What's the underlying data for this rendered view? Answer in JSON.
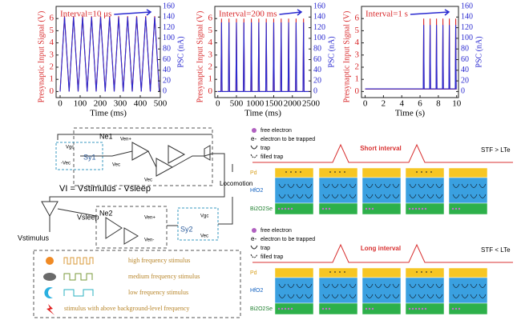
{
  "chart_data": [
    {
      "type": "line",
      "annotation": "Interval=10 μs",
      "xlabel": "Time (ms)",
      "ylabel": "Presynaptic Input Signal (V)",
      "y2label": "PSC (nA)",
      "x": [
        0,
        22,
        45,
        67,
        90,
        112,
        135,
        157,
        180,
        202,
        225,
        247,
        270,
        292,
        315,
        337,
        360,
        382,
        405,
        427,
        450,
        472,
        495
      ],
      "series": [
        {
          "color": "#d8282a",
          "axis": "y",
          "values": [
            0,
            6.2,
            0,
            6.2,
            0,
            6.2,
            0,
            6.2,
            0,
            6.2,
            0,
            6.2,
            0,
            6.2,
            0,
            6.2,
            0,
            6.2,
            0,
            6.2,
            0,
            6.2,
            0
          ]
        },
        {
          "color": "#2a2ad0",
          "axis": "y2",
          "values": [
            0,
            140,
            0,
            140,
            0,
            140,
            0,
            140,
            0,
            140,
            0,
            140,
            0,
            140,
            0,
            140,
            0,
            140,
            0,
            140,
            0,
            140,
            0
          ]
        }
      ],
      "xlim": [
        -20,
        500
      ],
      "xticks": [
        0,
        100,
        200,
        300,
        400,
        500
      ],
      "ylim": [
        -0.5,
        7
      ],
      "yticks": [
        0,
        1,
        2,
        3,
        4,
        5,
        6
      ],
      "y2lim": [
        -11.4,
        160
      ],
      "y2ticks": [
        0,
        20,
        40,
        60,
        80,
        100,
        120,
        140,
        160
      ]
    },
    {
      "type": "line",
      "annotation": "Interval=200 ms",
      "xlabel": "Time (ms)",
      "ylabel": "Presynaptic Input Signal (V)",
      "y2label": "PSC (nA)",
      "x": [
        0,
        85,
        100,
        115,
        285,
        300,
        315,
        485,
        500,
        515,
        685,
        700,
        715,
        885,
        900,
        915,
        1085,
        1100,
        1115,
        1285,
        1300,
        1315,
        1485,
        1500,
        1515,
        1685,
        1700,
        1715,
        1885,
        1900,
        1915,
        2085,
        2100,
        2115,
        2285,
        2300,
        2315,
        2500
      ],
      "series": [
        {
          "color": "#d8282a",
          "axis": "y",
          "values": [
            0,
            0,
            6,
            0,
            0,
            6,
            0,
            0,
            6,
            0,
            0,
            6,
            0,
            0,
            6,
            0,
            0,
            6,
            0,
            0,
            6,
            0,
            0,
            6,
            0,
            0,
            6,
            0,
            0,
            6,
            0,
            0,
            6,
            0,
            0,
            6,
            0,
            0
          ]
        },
        {
          "color": "#2a2ad0",
          "axis": "y2",
          "values": [
            0,
            0,
            130,
            0,
            0,
            130,
            0,
            0,
            130,
            0,
            0,
            130,
            0,
            0,
            130,
            0,
            0,
            130,
            0,
            0,
            130,
            0,
            0,
            130,
            0,
            0,
            130,
            0,
            0,
            130,
            0,
            0,
            130,
            0,
            0,
            130,
            0,
            0
          ]
        }
      ],
      "xlim": [
        -80,
        2500
      ],
      "xticks": [
        0,
        500,
        1000,
        1500,
        2000,
        2500
      ],
      "ylim": [
        -0.5,
        7
      ],
      "yticks": [
        0,
        1,
        2,
        3,
        4,
        5,
        6
      ],
      "y2lim": [
        -11.4,
        160
      ],
      "y2ticks": [
        0,
        20,
        40,
        60,
        80,
        100,
        120,
        140,
        160
      ]
    },
    {
      "type": "line",
      "annotation": "Interval=1 s",
      "xlabel": "Time (s)",
      "ylabel": "Presynaptic Input Signal (V)",
      "y2label": "PSC (nA)",
      "x": [
        0,
        6.35,
        6.4,
        6.45,
        7.05,
        7.1,
        7.15,
        7.75,
        7.8,
        7.85,
        8.45,
        8.5,
        8.55,
        9.15,
        9.2,
        9.25,
        9.85,
        9.9,
        9.95,
        10
      ],
      "series": [
        {
          "color": "#d8282a",
          "axis": "y",
          "values": [
            0.2,
            0.2,
            6,
            0.2,
            0.2,
            6,
            0.2,
            0.2,
            6,
            0.2,
            0.2,
            6,
            0.2,
            0.2,
            6,
            0.2,
            0.2,
            6,
            0.2,
            0.2
          ]
        },
        {
          "color": "#2a2ad0",
          "axis": "y2",
          "values": [
            5,
            5,
            125,
            5,
            5,
            125,
            5,
            5,
            125,
            5,
            5,
            125,
            5,
            5,
            125,
            5,
            5,
            125,
            5,
            5
          ]
        }
      ],
      "xlim": [
        -0.4,
        10.2
      ],
      "xticks": [
        0,
        2,
        4,
        6,
        8,
        10
      ],
      "ylim": [
        -0.5,
        7
      ],
      "yticks": [
        0,
        1,
        2,
        3,
        4,
        5,
        6
      ],
      "y2lim": [
        -11.4,
        160
      ],
      "y2ticks": [
        0,
        20,
        40,
        60,
        80,
        100,
        120,
        140,
        160
      ]
    }
  ],
  "circuit": {
    "sy1": "Sy1",
    "ne1": "Ne1",
    "ne2": "Ne2",
    "sy2": "Sy2",
    "vi": "VI = Vstimulus - Vsleep",
    "vsleep": "Vsleep",
    "vstimulus": "Vstimulus",
    "locomotion": "Locomotion",
    "pins": [
      "Vgc",
      "-Vec",
      "Ven+",
      "Vec",
      "Vec",
      "Ven+",
      "Ven-",
      "Vgc",
      "Vec"
    ],
    "legend": [
      "high frequency stimulus",
      "medium frequency stimulus",
      "low frequency stimulus",
      "stimulus with above background-level frequency"
    ]
  },
  "mechanism": {
    "legend": [
      "free electron",
      "electron to be trapped",
      "trap",
      "filled trap"
    ],
    "symbol": "e-",
    "layers": [
      "Pd",
      "HfO2",
      "Bi2O2Se"
    ],
    "panels": [
      {
        "label": "Short interval",
        "relation": "STF > LTe"
      },
      {
        "label": "Long interval",
        "relation": "STF < LTe"
      }
    ]
  }
}
